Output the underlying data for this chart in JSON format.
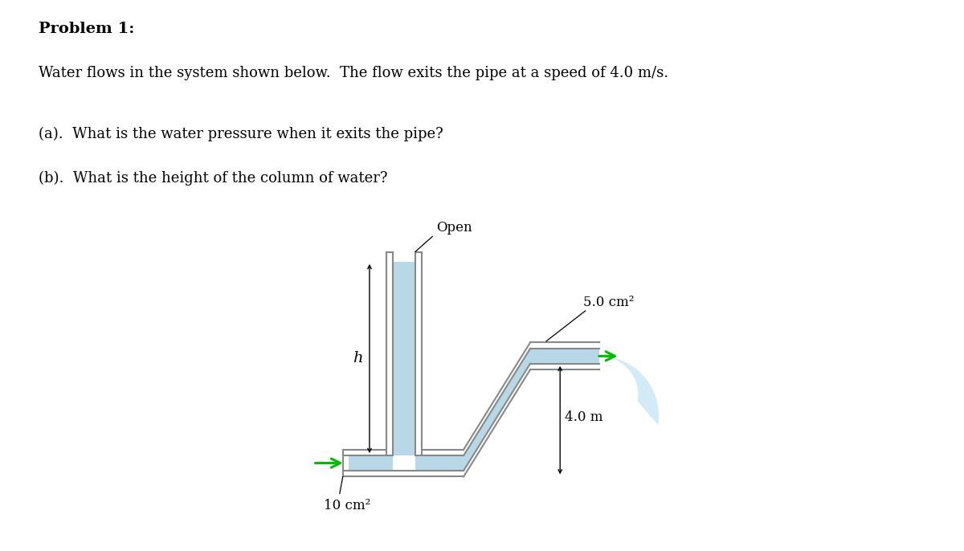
{
  "title": "Problem 1:",
  "line1": "Water flows in the system shown below.  The flow exits the pipe at a speed of 4.0 m/s.",
  "line2a": "(a).  What is the water pressure when it exits the pipe?",
  "line2b": "(b).  What is the height of the column of water?",
  "open_label": "Open",
  "h_label": "h",
  "label_10cm2": "10 cm²",
  "label_5cm2": "5.0 cm²",
  "label_4m": "4.0 m",
  "water_color": "#b8d8e8",
  "pipe_wall_color": "#cccccc",
  "pipe_line_color": "#888888",
  "arrow_color": "#00bb00",
  "water_jet_color": "#cce8f8",
  "bg_color": "#ffffff"
}
